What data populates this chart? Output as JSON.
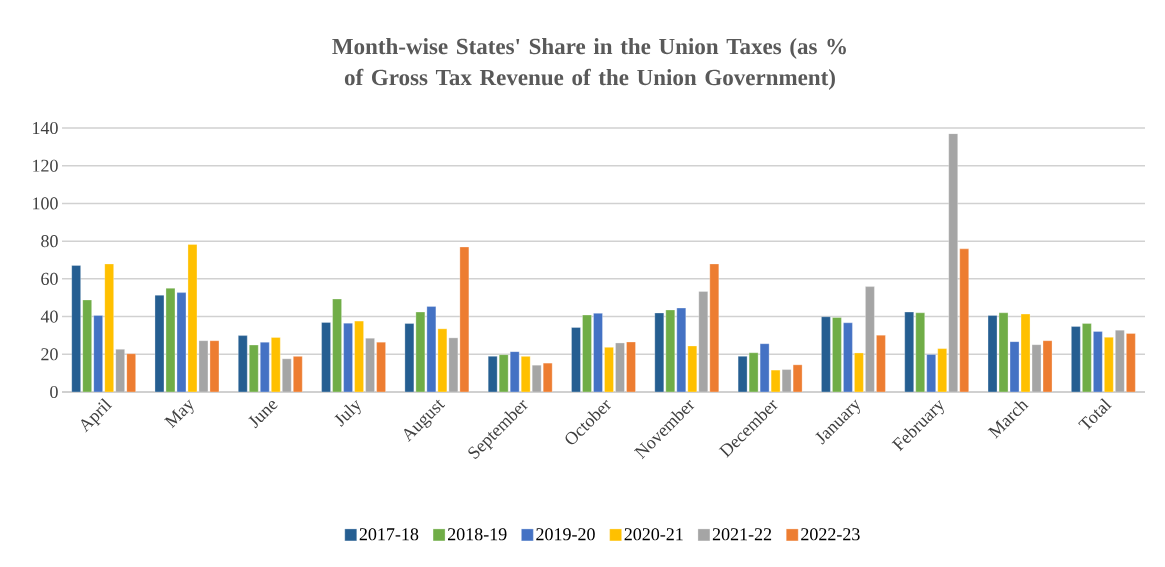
{
  "chart_data": {
    "type": "bar",
    "title": "Month-wise States' Share in the Union Taxes (as % of Gross Tax Revenue of the Union Government)",
    "categories": [
      "April",
      "May",
      "June",
      "July",
      "August",
      "September",
      "October",
      "November",
      "December",
      "January",
      "February",
      "March",
      "Total"
    ],
    "series": [
      {
        "name": "2017-18",
        "color": "#255e91",
        "values": [
          67.1,
          51.3,
          29.9,
          36.9,
          36.3,
          18.9,
          34.2,
          41.9,
          18.9,
          39.9,
          42.4,
          40.6,
          34.7
        ]
      },
      {
        "name": "2018-19",
        "color": "#70ad47",
        "values": [
          48.8,
          55.0,
          24.9,
          49.3,
          42.4,
          19.8,
          40.8,
          43.5,
          20.8,
          39.5,
          42.0,
          42.0,
          36.3
        ]
      },
      {
        "name": "2019-20",
        "color": "#4472c4",
        "values": [
          40.6,
          52.7,
          26.4,
          36.5,
          45.4,
          21.4,
          41.7,
          44.5,
          25.6,
          36.7,
          19.9,
          26.7,
          32.1
        ]
      },
      {
        "name": "2020-21",
        "color": "#ffc000",
        "values": [
          67.9,
          78.2,
          28.9,
          37.6,
          33.5,
          18.9,
          23.7,
          24.4,
          11.6,
          20.7,
          23.0,
          41.3,
          29.0
        ]
      },
      {
        "name": "2021-22",
        "color": "#a5a5a5",
        "values": [
          22.6,
          27.2,
          17.6,
          28.5,
          28.7,
          14.2,
          26.0,
          53.3,
          11.9,
          55.9,
          137.0,
          25.1,
          32.8
        ]
      },
      {
        "name": "2022-23",
        "color": "#ed7d31",
        "values": [
          20.3,
          27.2,
          18.9,
          26.4,
          76.9,
          15.3,
          26.5,
          67.9,
          14.4,
          30.1,
          75.9,
          27.2,
          31.0
        ]
      }
    ],
    "ylim": [
      0,
      140
    ],
    "yticks": [
      0,
      20,
      40,
      60,
      80,
      100,
      120,
      140
    ],
    "grid": "y",
    "legend": "bottom"
  }
}
